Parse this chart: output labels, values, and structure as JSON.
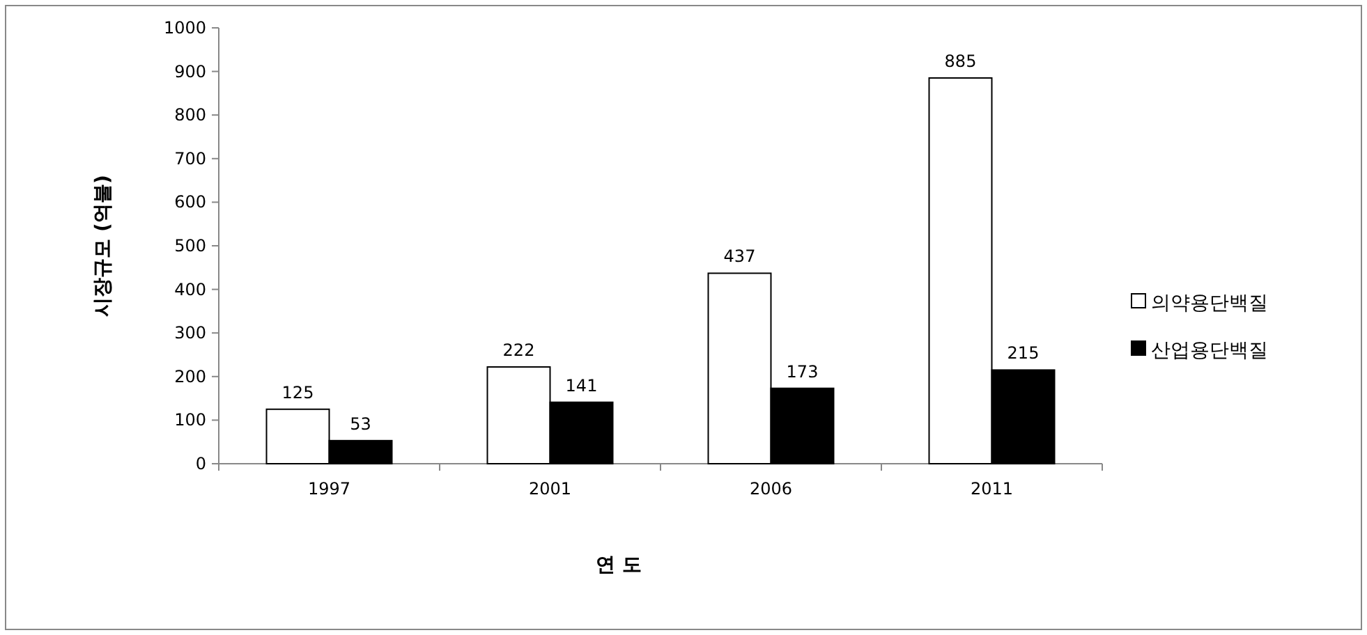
{
  "chart_data": {
    "type": "bar",
    "xlabel": "연 도",
    "ylabel": "시장규모 (억불)",
    "categories": [
      "1997",
      "2001",
      "2006",
      "2011"
    ],
    "series": [
      {
        "name": "의약용단백질",
        "color": "#ffffff",
        "values": [
          125,
          222,
          437,
          885
        ]
      },
      {
        "name": "산업용단백질",
        "color": "#000000",
        "values": [
          53,
          141,
          173,
          215
        ]
      }
    ],
    "ylim": [
      0,
      1000
    ],
    "yticks": [
      0,
      100,
      200,
      300,
      400,
      500,
      600,
      700,
      800,
      900,
      1000
    ],
    "data_labels": true,
    "legend": "right",
    "grid": false
  }
}
